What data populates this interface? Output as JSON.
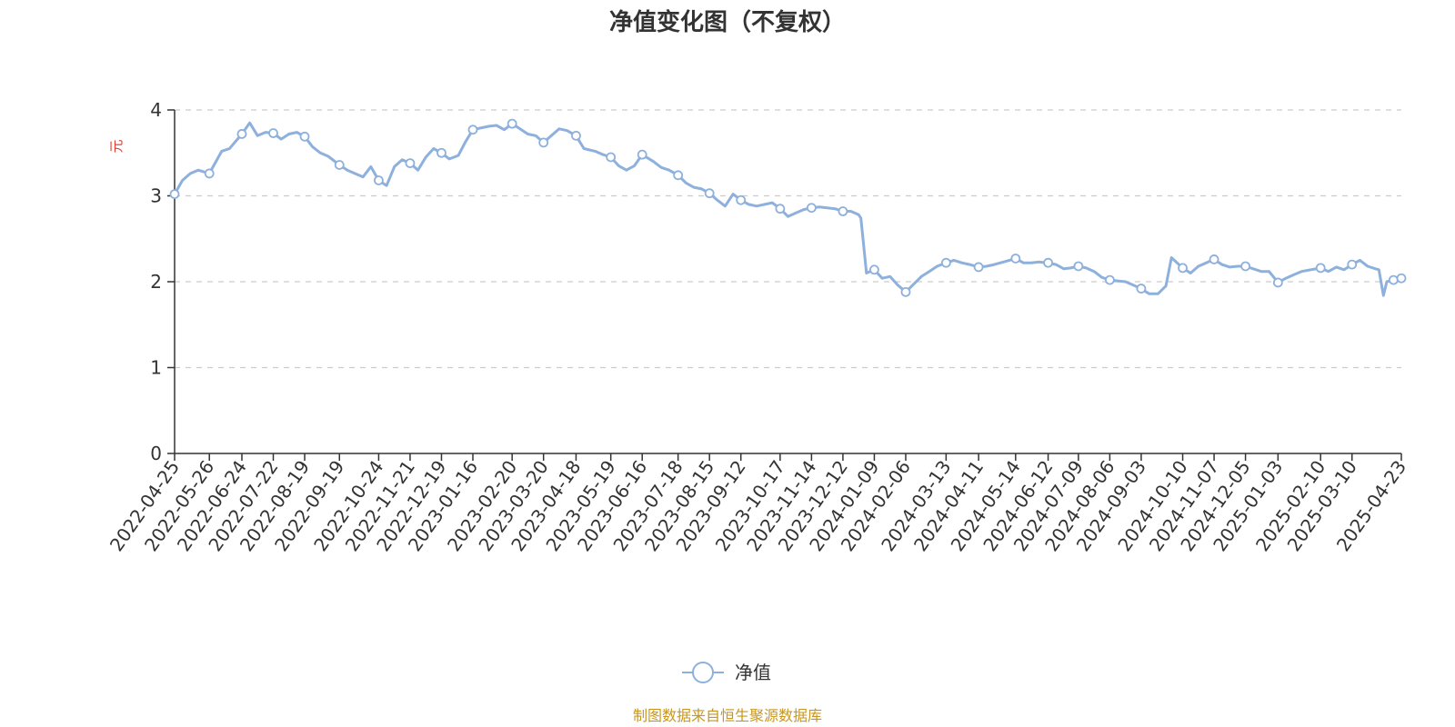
{
  "chart_data": {
    "type": "line",
    "title": "净值变化图（不复权）",
    "ylabel": "元",
    "ylim": [
      0,
      4
    ],
    "yticks": [
      "0",
      "1",
      "2",
      "3",
      "4"
    ],
    "grid": true,
    "legend_position": "bottom-center",
    "x_ticks": [
      "2022-04-25",
      "2022-05-26",
      "2022-06-24",
      "2022-07-22",
      "2022-08-19",
      "2022-09-19",
      "2022-10-24",
      "2022-11-21",
      "2022-12-19",
      "2023-01-16",
      "2023-02-20",
      "2023-03-20",
      "2023-04-18",
      "2023-05-19",
      "2023-06-16",
      "2023-07-18",
      "2023-08-15",
      "2023-09-12",
      "2023-10-17",
      "2023-11-14",
      "2023-12-12",
      "2024-01-09",
      "2024-02-06",
      "2024-03-13",
      "2024-04-11",
      "2024-05-14",
      "2024-06-12",
      "2024-07-09",
      "2024-08-06",
      "2024-09-03",
      "2024-10-10",
      "2024-11-07",
      "2024-12-05",
      "2025-01-03",
      "2025-02-10",
      "2025-03-10",
      "2025-04-23"
    ],
    "series": [
      {
        "name": "净值",
        "color": "#8eb0dc",
        "x": [
          "2022-04-25",
          "2022-05-02",
          "2022-05-09",
          "2022-05-16",
          "2022-05-26",
          "2022-06-06",
          "2022-06-13",
          "2022-06-24",
          "2022-07-01",
          "2022-07-08",
          "2022-07-15",
          "2022-07-22",
          "2022-07-29",
          "2022-08-05",
          "2022-08-12",
          "2022-08-19",
          "2022-08-26",
          "2022-09-02",
          "2022-09-09",
          "2022-09-19",
          "2022-09-26",
          "2022-10-10",
          "2022-10-17",
          "2022-10-24",
          "2022-10-31",
          "2022-11-07",
          "2022-11-14",
          "2022-11-21",
          "2022-11-28",
          "2022-12-05",
          "2022-12-12",
          "2022-12-19",
          "2022-12-26",
          "2023-01-03",
          "2023-01-09",
          "2023-01-16",
          "2023-01-30",
          "2023-02-06",
          "2023-02-13",
          "2023-02-20",
          "2023-02-27",
          "2023-03-06",
          "2023-03-13",
          "2023-03-20",
          "2023-03-27",
          "2023-04-03",
          "2023-04-10",
          "2023-04-18",
          "2023-04-25",
          "2023-05-05",
          "2023-05-12",
          "2023-05-19",
          "2023-05-26",
          "2023-06-02",
          "2023-06-09",
          "2023-06-16",
          "2023-06-26",
          "2023-07-03",
          "2023-07-10",
          "2023-07-18",
          "2023-07-25",
          "2023-08-01",
          "2023-08-08",
          "2023-08-15",
          "2023-08-22",
          "2023-08-29",
          "2023-09-05",
          "2023-09-12",
          "2023-09-19",
          "2023-09-26",
          "2023-10-10",
          "2023-10-17",
          "2023-10-24",
          "2023-10-31",
          "2023-11-07",
          "2023-11-14",
          "2023-11-21",
          "2023-11-28",
          "2023-12-05",
          "2023-12-12",
          "2023-12-19",
          "2023-12-26",
          "2023-12-28",
          "2024-01-02",
          "2024-01-09",
          "2024-01-16",
          "2024-01-23",
          "2024-01-30",
          "2024-02-06",
          "2024-02-20",
          "2024-02-27",
          "2024-03-05",
          "2024-03-13",
          "2024-03-20",
          "2024-03-27",
          "2024-04-03",
          "2024-04-11",
          "2024-04-18",
          "2024-04-25",
          "2024-05-06",
          "2024-05-14",
          "2024-05-21",
          "2024-05-28",
          "2024-06-04",
          "2024-06-12",
          "2024-06-19",
          "2024-06-26",
          "2024-07-02",
          "2024-07-09",
          "2024-07-16",
          "2024-07-23",
          "2024-07-30",
          "2024-08-06",
          "2024-08-13",
          "2024-08-20",
          "2024-08-27",
          "2024-09-03",
          "2024-09-10",
          "2024-09-18",
          "2024-09-25",
          "2024-09-30",
          "2024-10-10",
          "2024-10-17",
          "2024-10-24",
          "2024-10-31",
          "2024-11-07",
          "2024-11-14",
          "2024-11-21",
          "2024-11-28",
          "2024-12-05",
          "2024-12-12",
          "2024-12-19",
          "2024-12-26",
          "2025-01-03",
          "2025-01-10",
          "2025-01-17",
          "2025-01-24",
          "2025-02-10",
          "2025-02-17",
          "2025-02-24",
          "2025-03-03",
          "2025-03-10",
          "2025-03-17",
          "2025-03-24",
          "2025-03-31",
          "2025-04-03",
          "2025-04-07",
          "2025-04-10",
          "2025-04-16",
          "2025-04-23"
        ],
        "y": [
          3.02,
          3.18,
          3.26,
          3.3,
          3.26,
          3.52,
          3.55,
          3.72,
          3.85,
          3.7,
          3.74,
          3.73,
          3.66,
          3.72,
          3.74,
          3.69,
          3.57,
          3.5,
          3.46,
          3.36,
          3.3,
          3.22,
          3.34,
          3.18,
          3.12,
          3.34,
          3.42,
          3.38,
          3.3,
          3.45,
          3.55,
          3.5,
          3.43,
          3.47,
          3.62,
          3.77,
          3.81,
          3.82,
          3.77,
          3.84,
          3.78,
          3.72,
          3.7,
          3.62,
          3.7,
          3.78,
          3.76,
          3.7,
          3.55,
          3.52,
          3.48,
          3.45,
          3.35,
          3.3,
          3.35,
          3.48,
          3.4,
          3.33,
          3.3,
          3.24,
          3.15,
          3.1,
          3.08,
          3.03,
          2.95,
          2.88,
          3.02,
          2.95,
          2.9,
          2.88,
          2.92,
          2.85,
          2.76,
          2.8,
          2.84,
          2.86,
          2.87,
          2.86,
          2.85,
          2.82,
          2.82,
          2.78,
          2.74,
          2.1,
          2.14,
          2.04,
          2.06,
          1.96,
          1.88,
          2.06,
          2.12,
          2.18,
          2.22,
          2.25,
          2.22,
          2.2,
          2.17,
          2.18,
          2.2,
          2.24,
          2.27,
          2.22,
          2.22,
          2.23,
          2.22,
          2.2,
          2.15,
          2.16,
          2.18,
          2.16,
          2.12,
          2.05,
          2.02,
          2.01,
          2.0,
          1.96,
          1.92,
          1.86,
          1.86,
          1.95,
          2.28,
          2.16,
          2.1,
          2.18,
          2.22,
          2.26,
          2.2,
          2.17,
          2.18,
          2.18,
          2.15,
          2.12,
          2.12,
          1.99,
          2.04,
          2.08,
          2.12,
          2.16,
          2.12,
          2.17,
          2.14,
          2.2,
          2.25,
          2.18,
          2.15,
          2.14,
          1.84,
          2.0,
          2.02,
          2.04
        ]
      }
    ],
    "marker_dates": [
      "2022-04-25",
      "2022-05-26",
      "2022-06-24",
      "2022-07-22",
      "2022-08-19",
      "2022-09-19",
      "2022-10-24",
      "2022-11-21",
      "2022-12-19",
      "2023-01-16",
      "2023-02-20",
      "2023-03-20",
      "2023-04-18",
      "2023-05-19",
      "2023-06-16",
      "2023-07-18",
      "2023-08-15",
      "2023-09-12",
      "2023-10-17",
      "2023-11-14",
      "2023-12-12",
      "2024-01-09",
      "2024-02-06",
      "2024-03-13",
      "2024-04-11",
      "2024-05-14",
      "2024-06-12",
      "2024-07-09",
      "2024-08-06",
      "2024-09-03",
      "2024-10-10",
      "2024-11-07",
      "2024-12-05",
      "2025-01-03",
      "2025-02-10",
      "2025-03-10",
      "2025-04-16",
      "2025-04-23"
    ]
  },
  "legend": {
    "label": "净值"
  },
  "source_note": "制图数据来自恒生聚源数据库"
}
